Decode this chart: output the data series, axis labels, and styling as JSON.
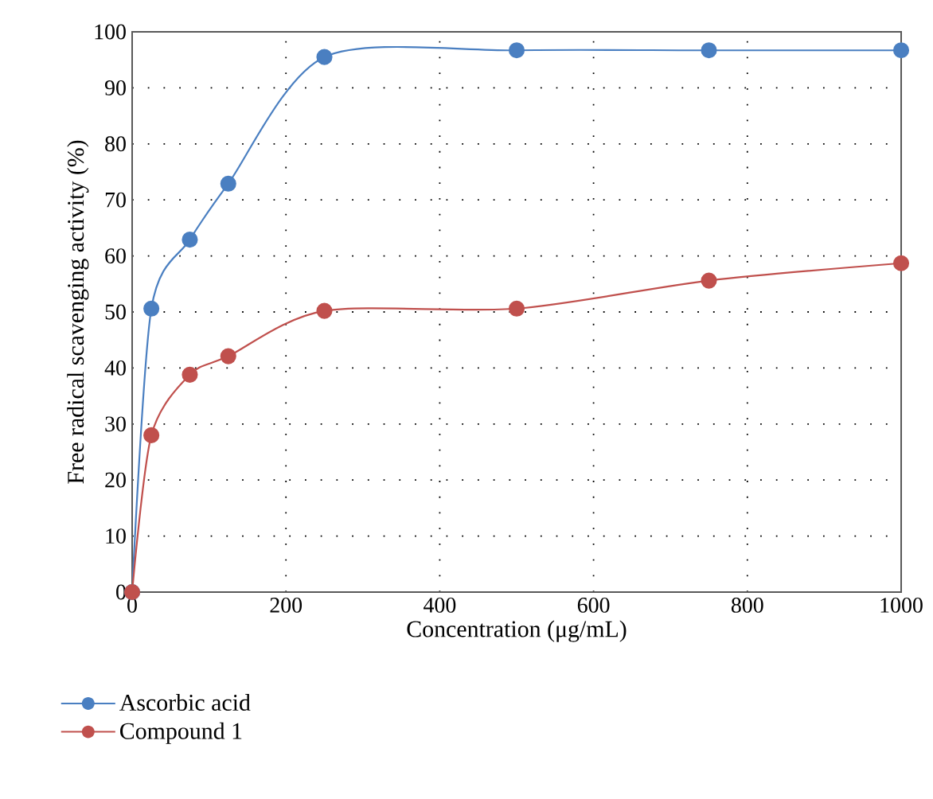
{
  "chart_data": {
    "type": "line",
    "xlabel": "Concentration (μg/mL)",
    "ylabel": "Free radical scavenging activity (%)",
    "x": [
      0,
      25,
      75,
      125,
      250,
      500,
      750,
      1000
    ],
    "series": [
      {
        "name": "Ascorbic acid",
        "color": "#4a7fc1",
        "values": [
          0,
          50.6,
          62.9,
          72.9,
          95.5,
          96.7,
          96.7,
          96.7
        ]
      },
      {
        "name": "Compound 1",
        "color": "#c0504d",
        "values": [
          0,
          28.0,
          38.8,
          42.1,
          50.2,
          50.6,
          55.6,
          58.7
        ]
      }
    ],
    "xlim": [
      0,
      1000
    ],
    "ylim": [
      0,
      100
    ],
    "xticks": [
      0,
      200,
      400,
      600,
      800,
      1000
    ],
    "yticks": [
      0,
      10,
      20,
      30,
      40,
      50,
      60,
      70,
      80,
      90,
      100
    ],
    "grid": true,
    "legend": "bottom left",
    "marker": "circle",
    "line_style": "solid"
  }
}
